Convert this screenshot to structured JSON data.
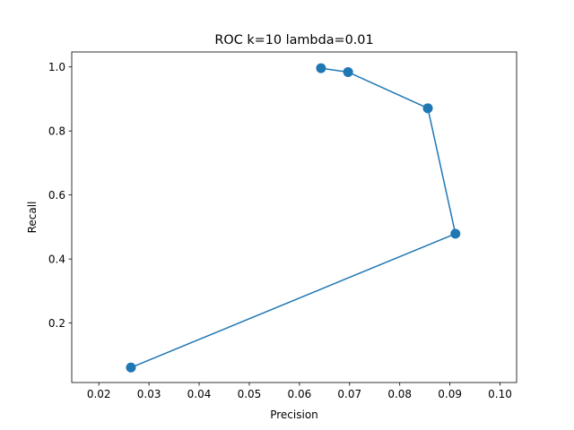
{
  "chart_data": {
    "type": "line",
    "title": "ROC k=10 lambda=0.01",
    "xlabel": "Precision",
    "ylabel": "Recall",
    "xlim": [
      0.0146,
      0.1033
    ],
    "ylim": [
      0.0142,
      1.0468
    ],
    "xticks": [
      0.02,
      0.03,
      0.04,
      0.05,
      0.06,
      0.07,
      0.08,
      0.09,
      0.1
    ],
    "xtick_labels": [
      "0.02",
      "0.03",
      "0.04",
      "0.05",
      "0.06",
      "0.07",
      "0.08",
      "0.09",
      "0.10"
    ],
    "yticks": [
      0.2,
      0.4,
      0.6,
      0.8,
      1.0
    ],
    "ytick_labels": [
      "0.2",
      "0.4",
      "0.6",
      "0.8",
      "1.0"
    ],
    "grid": false,
    "series": [
      {
        "color": "#1f77b4",
        "marker": "circle",
        "x": [
          0.0264,
          0.0911,
          0.0856,
          0.0697,
          0.0643
        ],
        "y": [
          0.061,
          0.479,
          0.871,
          0.984,
          0.996
        ]
      }
    ]
  }
}
